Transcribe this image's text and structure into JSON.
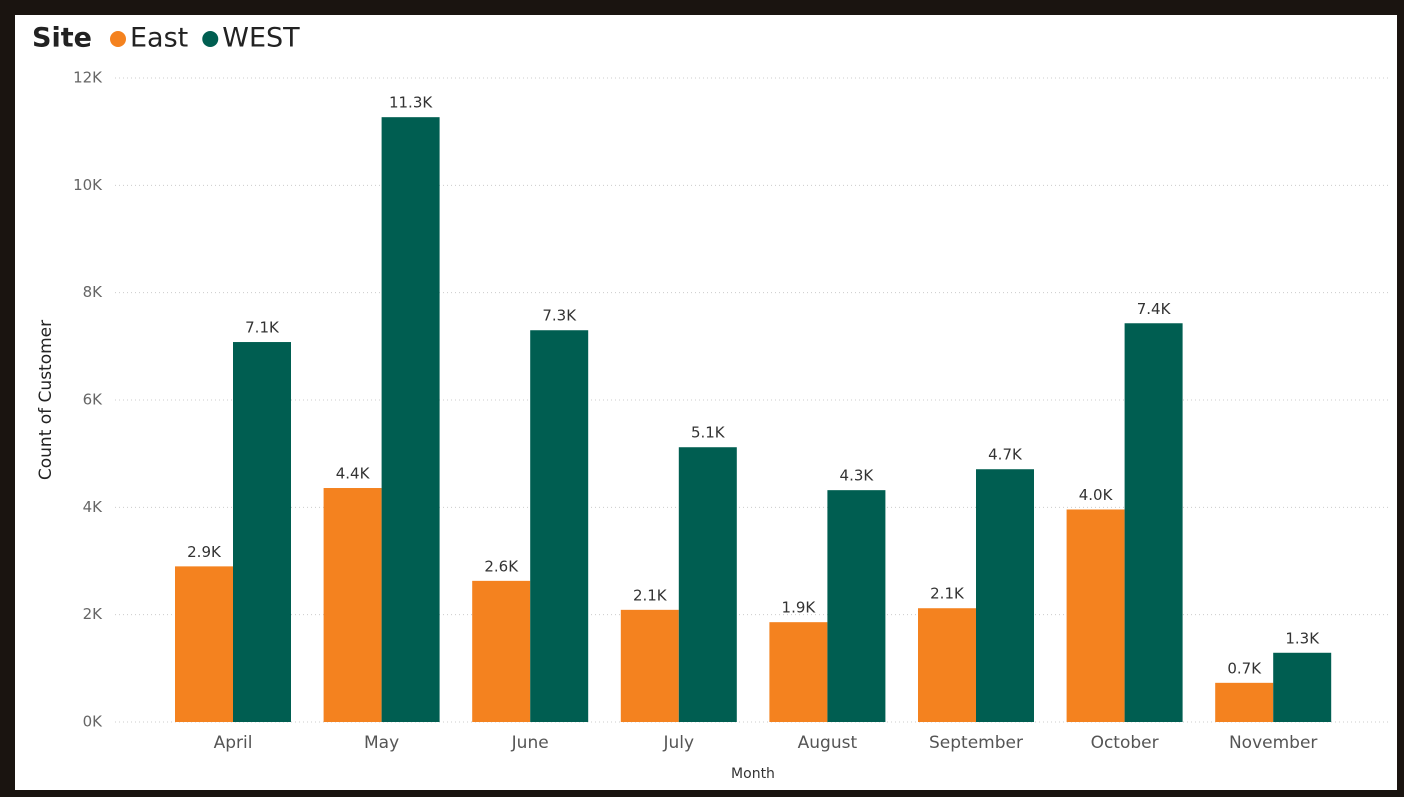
{
  "chart_data": {
    "type": "bar",
    "legend_title": "Site",
    "x_label": "Month",
    "y_label": "Count of Customer",
    "categories": [
      "April",
      "May",
      "June",
      "July",
      "August",
      "September",
      "October",
      "November"
    ],
    "series": [
      {
        "name": "East",
        "color": "#f4821f",
        "values": [
          2900,
          4360,
          2630,
          2090,
          1860,
          2120,
          3960,
          730
        ],
        "value_labels": [
          "2.9K",
          "4.4K",
          "2.6K",
          "2.1K",
          "1.9K",
          "2.1K",
          "4.0K",
          "0.7K"
        ]
      },
      {
        "name": "WEST",
        "color": "#005e51",
        "values": [
          7080,
          11270,
          7300,
          5120,
          4320,
          4710,
          7430,
          1290
        ],
        "value_labels": [
          "7.1K",
          "11.3K",
          "7.3K",
          "5.1K",
          "4.3K",
          "4.7K",
          "7.4K",
          "1.3K"
        ]
      }
    ],
    "ylim": [
      0,
      12000
    ],
    "yticks": [
      {
        "value": 0,
        "label": "0K"
      },
      {
        "value": 2000,
        "label": "2K"
      },
      {
        "value": 4000,
        "label": "4K"
      },
      {
        "value": 6000,
        "label": "6K"
      },
      {
        "value": 8000,
        "label": "8K"
      },
      {
        "value": 10000,
        "label": "10K"
      },
      {
        "value": 12000,
        "label": "12K"
      }
    ],
    "grid": true,
    "legend_position": "top-left"
  }
}
